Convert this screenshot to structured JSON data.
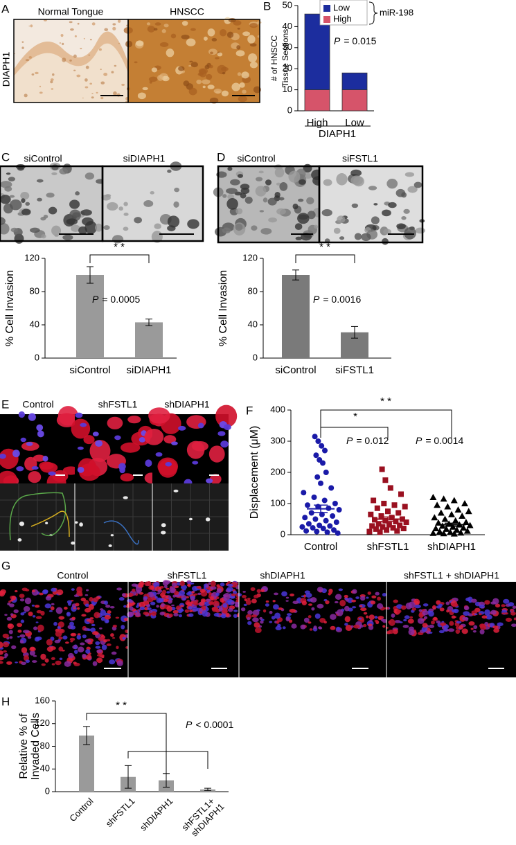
{
  "panels": {
    "A": {
      "letter": "A",
      "labels": [
        "Normal Tongue",
        "HNSCC"
      ],
      "ylabel": "DIAPH1"
    },
    "C": {
      "letter": "C",
      "labels": [
        "siControl",
        "siDIAPH1"
      ]
    },
    "D": {
      "letter": "D",
      "labels": [
        "siControl",
        "siFSTL1"
      ]
    },
    "E": {
      "letter": "E",
      "labels": [
        "Control",
        "shFSTL1",
        "shDIAPH1"
      ]
    },
    "G": {
      "letter": "G",
      "labels": [
        "Control",
        "shFSTL1",
        "shDIAPH1",
        "shFSTL1 + shDIAPH1"
      ]
    }
  },
  "chart_data": [
    {
      "type": "bar",
      "panel": "B",
      "ylabel": [
        "# of HNSCC",
        "Tissue Sections"
      ],
      "categories": [
        "High",
        "Low"
      ],
      "group_label": "DIAPH1",
      "legend_title": "miR-198",
      "series": [
        {
          "name": "High",
          "color": "#d6546a",
          "values": [
            10,
            10
          ]
        },
        {
          "name": "Low",
          "color": "#1c2d9e",
          "values": [
            36,
            8
          ]
        }
      ],
      "ylim": [
        0,
        50
      ],
      "yticks": [
        0,
        10,
        20,
        30,
        40,
        50
      ],
      "p_value": {
        "symbol": "P",
        "text": "= 0.015"
      }
    },
    {
      "type": "bar",
      "ylabel": [
        "% Cell Invasion"
      ],
      "categories": [
        "siControl",
        "siDIAPH1"
      ],
      "values": [
        100,
        43
      ],
      "errors": [
        10,
        4
      ],
      "color": "#9a9a9a",
      "ylim": [
        0,
        120
      ],
      "yticks": [
        0,
        40,
        80,
        120
      ],
      "significance": [
        "* *"
      ],
      "p_value": {
        "symbol": "P",
        "text": "= 0.0005"
      }
    },
    {
      "type": "bar",
      "ylabel": [
        "% Cell Invasion"
      ],
      "categories": [
        "siControl",
        "siFSTL1"
      ],
      "values": [
        100,
        31
      ],
      "errors": [
        6,
        7
      ],
      "color": "#7a7a7a",
      "ylim": [
        0,
        120
      ],
      "yticks": [
        0,
        40,
        80,
        120
      ],
      "significance": [
        "* *"
      ],
      "p_value": {
        "symbol": "P",
        "text": "= 0.0016"
      }
    },
    {
      "type": "scatter",
      "panel": "F",
      "ylabel": [
        "Displacement (μM)"
      ],
      "categories": [
        "Control",
        "shFSTL1",
        "shDIAPH1"
      ],
      "series": [
        {
          "name": "Control",
          "color": "#1a1aa8",
          "marker": "circle",
          "mean": 83,
          "error": 12,
          "values": [
            315,
            300,
            285,
            270,
            255,
            240,
            230,
            200,
            185,
            165,
            150,
            135,
            120,
            110,
            100,
            95,
            90,
            85,
            80,
            70,
            65,
            60,
            55,
            50,
            45,
            40,
            35,
            30,
            28,
            25,
            22,
            20,
            15,
            12,
            10,
            8,
            5
          ]
        },
        {
          "name": "shFSTL1",
          "color": "#9a1020",
          "marker": "square",
          "mean": 50,
          "error": 7,
          "values": [
            210,
            175,
            150,
            130,
            110,
            100,
            95,
            90,
            85,
            75,
            70,
            65,
            60,
            55,
            50,
            48,
            45,
            42,
            40,
            35,
            32,
            30,
            28,
            25,
            22,
            20,
            18,
            15,
            12,
            10,
            8
          ]
        },
        {
          "name": "shDIAPH1",
          "color": "#000000",
          "marker": "triangle",
          "mean": 32,
          "error": 5,
          "values": [
            120,
            115,
            110,
            100,
            95,
            90,
            80,
            75,
            70,
            65,
            60,
            55,
            50,
            45,
            40,
            38,
            35,
            32,
            30,
            28,
            25,
            22,
            20,
            18,
            15,
            12,
            10,
            8,
            6,
            5,
            4,
            3
          ]
        }
      ],
      "ylim": [
        0,
        400
      ],
      "yticks": [
        0,
        100,
        200,
        300,
        400
      ],
      "significance": [
        "*",
        "* *"
      ],
      "p_values": [
        {
          "symbol": "P",
          "text": "= 0.012"
        },
        {
          "symbol": "P",
          "text": "= 0.0014"
        }
      ]
    },
    {
      "type": "bar",
      "panel": "H",
      "ylabel": [
        "Relative % of",
        "Invaded Cells"
      ],
      "categories": [
        "Control",
        "shFSTL1",
        "shDIAPH1",
        [
          "shFSTL1+",
          "shDIAPH1"
        ]
      ],
      "values": [
        99,
        26,
        20,
        4
      ],
      "errors": [
        16,
        20,
        12,
        2
      ],
      "color": "#9a9a9a",
      "ylim": [
        0,
        160
      ],
      "yticks": [
        0,
        40,
        80,
        120,
        160
      ],
      "significance": [
        "* *"
      ],
      "p_value": {
        "symbol": "P",
        "text": "< 0.0001"
      }
    }
  ]
}
